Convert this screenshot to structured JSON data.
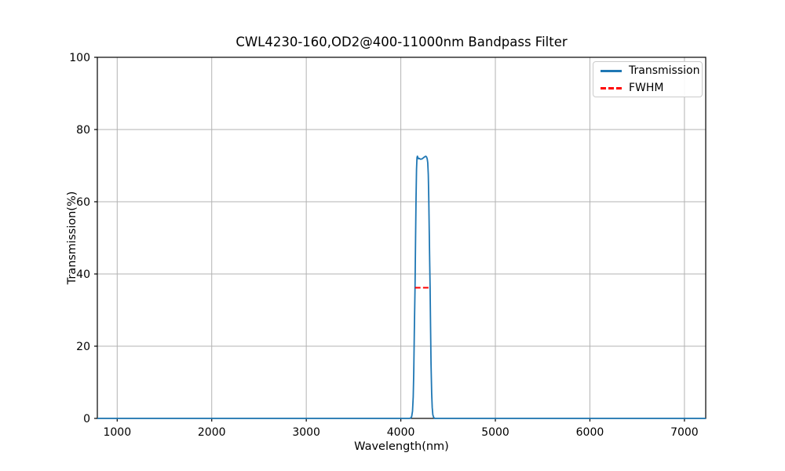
{
  "chart_data": {
    "type": "line",
    "title": "CWL4230-160,OD2@400-11000nm Bandpass Filter",
    "xlabel": "Wavelength(nm)",
    "ylabel": "Transmission(%)",
    "xlim": [
      790,
      7225
    ],
    "ylim": [
      0,
      100
    ],
    "xticks": [
      1000,
      2000,
      3000,
      4000,
      5000,
      6000,
      7000
    ],
    "yticks": [
      0,
      20,
      40,
      60,
      80,
      100
    ],
    "grid": true,
    "grid_color": "#b3b3b3",
    "background_color": "#ffffff",
    "legend": {
      "position": "upper right",
      "items": [
        {
          "label": "Transmission",
          "color": "#1f77b4",
          "style": "solid"
        },
        {
          "label": "FWHM",
          "color": "#ff0000",
          "style": "dashed"
        }
      ]
    },
    "series": [
      {
        "name": "Transmission",
        "color": "#1f77b4",
        "points": [
          [
            790,
            0
          ],
          [
            4090,
            0
          ],
          [
            4105,
            0.1
          ],
          [
            4115,
            0.5
          ],
          [
            4124,
            2
          ],
          [
            4131,
            6
          ],
          [
            4137,
            13
          ],
          [
            4143,
            24
          ],
          [
            4150,
            36.2
          ],
          [
            4156,
            50
          ],
          [
            4161,
            61
          ],
          [
            4166,
            69
          ],
          [
            4171,
            72.2
          ],
          [
            4175,
            72.6
          ],
          [
            4180,
            72.3
          ],
          [
            4187,
            71.9
          ],
          [
            4196,
            72.0
          ],
          [
            4206,
            71.8
          ],
          [
            4216,
            71.8
          ],
          [
            4226,
            71.9
          ],
          [
            4236,
            72.1
          ],
          [
            4246,
            72.3
          ],
          [
            4256,
            72.5
          ],
          [
            4264,
            72.6
          ],
          [
            4272,
            72.4
          ],
          [
            4279,
            71.9
          ],
          [
            4285,
            70.8
          ],
          [
            4291,
            67.5
          ],
          [
            4296,
            61
          ],
          [
            4301,
            52
          ],
          [
            4306,
            43
          ],
          [
            4310,
            36.2
          ],
          [
            4315,
            25
          ],
          [
            4320,
            15
          ],
          [
            4326,
            7
          ],
          [
            4332,
            3
          ],
          [
            4339,
            1
          ],
          [
            4347,
            0.3
          ],
          [
            4358,
            0
          ],
          [
            7225,
            0
          ]
        ]
      }
    ],
    "fwhm_marker": {
      "label": "FWHM",
      "color": "#ff0000",
      "y": 36.2,
      "x_start": 4150,
      "x_end": 4310
    }
  }
}
